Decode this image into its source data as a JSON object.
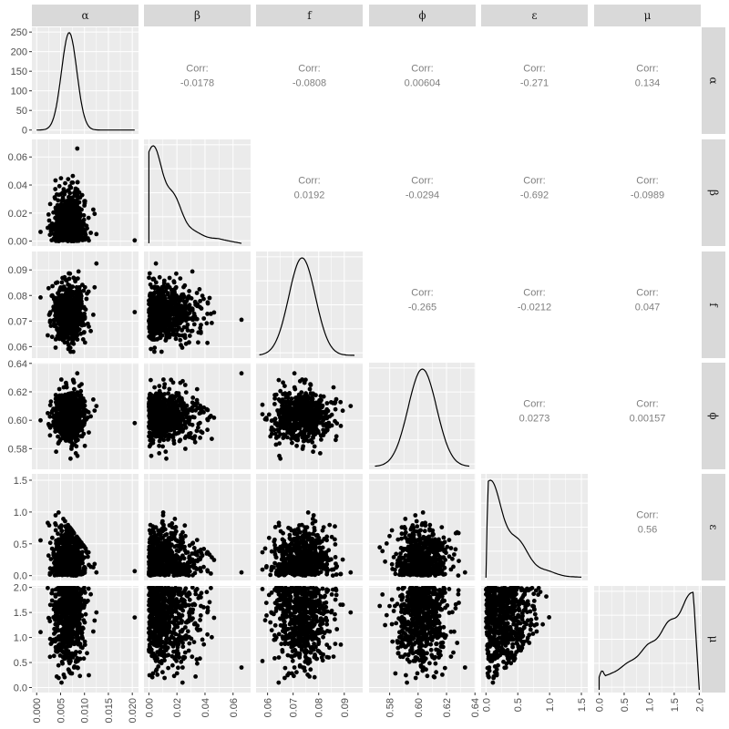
{
  "chart_data": {
    "type": "scatter-matrix",
    "variables": [
      "α",
      "β",
      "f",
      "ϕ",
      "ε",
      "μ"
    ],
    "corr_label": "Corr:",
    "axis_ticks": [
      [
        0,
        0.005,
        0.01,
        0.015,
        0.02
      ],
      [
        0,
        0.02,
        0.04,
        0.06
      ],
      [
        0.06,
        0.07,
        0.08,
        0.09
      ],
      [
        0.58,
        0.6,
        0.62,
        0.64
      ],
      [
        0,
        0.5,
        1.0,
        1.5
      ],
      [
        0,
        0.5,
        1.0,
        1.5,
        2.0
      ]
    ],
    "x_tick_labels": [
      [
        "0.000",
        "0.005",
        "0.010",
        "0.015",
        "0.020"
      ],
      [
        "0.00",
        "0.02",
        "0.04",
        "0.06"
      ],
      [
        "0.06",
        "0.07",
        "0.08",
        "0.09"
      ],
      [
        "0.58",
        "0.60",
        "0.62",
        "0.64"
      ],
      [
        "0.0",
        "0.5",
        "1.0",
        "1.5"
      ],
      [
        "0.0",
        "0.5",
        "1.0",
        "1.5",
        "2.0"
      ]
    ],
    "y_tick_labels": [
      [
        "0",
        "50",
        "100",
        "150",
        "200",
        "250"
      ],
      [
        "0.00",
        "0.02",
        "0.04",
        "0.06"
      ],
      [
        "0.06",
        "0.07",
        "0.08",
        "0.09"
      ],
      [
        "0.58",
        "0.60",
        "0.62",
        "0.64"
      ],
      [
        "0.0",
        "0.5",
        "1.0",
        "1.5"
      ],
      [
        "0.0",
        "0.5",
        "1.0",
        "1.5",
        "2.0"
      ]
    ],
    "density_y_ticks": [
      0,
      50,
      100,
      150,
      200,
      250
    ],
    "density_y_range": [
      -10,
      262
    ],
    "axis_ranges": [
      [
        -0.001,
        0.0213
      ],
      [
        -0.0035,
        0.0725
      ],
      [
        0.0555,
        0.0972
      ],
      [
        0.5655,
        0.6405
      ],
      [
        -0.076,
        1.6
      ],
      [
        -0.1,
        2.03
      ]
    ],
    "correlations": [
      {
        "row": "α",
        "col": "β",
        "value": "-0.0178"
      },
      {
        "row": "α",
        "col": "f",
        "value": "-0.0808"
      },
      {
        "row": "α",
        "col": "ϕ",
        "value": "0.00604"
      },
      {
        "row": "α",
        "col": "ε",
        "value": "-0.271"
      },
      {
        "row": "α",
        "col": "μ",
        "value": "0.134"
      },
      {
        "row": "β",
        "col": "f",
        "value": "0.0192"
      },
      {
        "row": "β",
        "col": "ϕ",
        "value": "-0.0294"
      },
      {
        "row": "β",
        "col": "ε",
        "value": "-0.692"
      },
      {
        "row": "β",
        "col": "μ",
        "value": "-0.0989"
      },
      {
        "row": "f",
        "col": "ϕ",
        "value": "-0.265"
      },
      {
        "row": "f",
        "col": "ε",
        "value": "-0.0212"
      },
      {
        "row": "f",
        "col": "μ",
        "value": "0.047"
      },
      {
        "row": "ϕ",
        "col": "ε",
        "value": "0.0273"
      },
      {
        "row": "ϕ",
        "col": "μ",
        "value": "0.00157"
      },
      {
        "row": "ε",
        "col": "μ",
        "value": "0.56"
      }
    ],
    "marginals": [
      {
        "var": "α",
        "shape": "normal",
        "mean": 0.0068,
        "sd": 0.0016,
        "range": [
          0.0,
          0.0205
        ],
        "peak_density": 248
      },
      {
        "var": "β",
        "shape": "right-skewed",
        "range": [
          0.0,
          0.066
        ]
      },
      {
        "var": "f",
        "shape": "normal",
        "mean": 0.0735,
        "sd": 0.0052,
        "range": [
          0.057,
          0.094
        ]
      },
      {
        "var": "ϕ",
        "shape": "normal",
        "mean": 0.603,
        "sd": 0.01,
        "range": [
          0.57,
          0.636
        ]
      },
      {
        "var": "ε",
        "shape": "right-skewed",
        "range": [
          0.0,
          1.5
        ]
      },
      {
        "var": "μ",
        "shape": "left-skewed",
        "range": [
          0.0,
          2.0
        ]
      }
    ],
    "grid": true,
    "background": "#ebebeb",
    "strip_background": "#d9d9d9",
    "point_color": "#000000"
  }
}
